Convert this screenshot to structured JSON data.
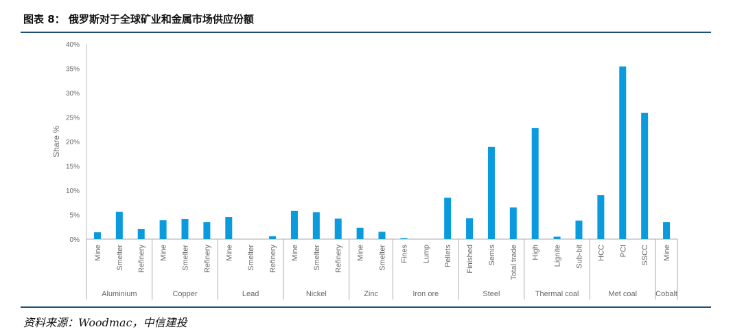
{
  "header": {
    "title": "图表 8：   俄罗斯对于全球矿业和金属市场供应份额"
  },
  "footer": {
    "source": "资料来源：Woodmac，中信建投"
  },
  "chart_data": {
    "type": "bar",
    "ylabel": "Share %",
    "ylim": [
      0,
      40
    ],
    "yticks": [
      "0%",
      "5%",
      "10%",
      "15%",
      "20%",
      "25%",
      "30%",
      "35%",
      "40%"
    ],
    "grid": false,
    "bar_color": "#0a9ade",
    "groups": [
      {
        "name": "Aluminium",
        "categories": [
          "Mine",
          "Smelter",
          "Refinery"
        ],
        "values": [
          1.4,
          5.6,
          2.1
        ]
      },
      {
        "name": "Copper",
        "categories": [
          "Mine",
          "Smelter",
          "Refinery"
        ],
        "values": [
          3.9,
          4.1,
          3.5
        ]
      },
      {
        "name": "Lead",
        "categories": [
          "Mine",
          "Smelter",
          "Refinery"
        ],
        "values": [
          4.5,
          0,
          0.6
        ]
      },
      {
        "name": "Nickel",
        "categories": [
          "Mine",
          "Smelter",
          "Refinery"
        ],
        "values": [
          5.8,
          5.5,
          4.2
        ]
      },
      {
        "name": "Zinc",
        "categories": [
          "Mine",
          "Smelter"
        ],
        "values": [
          2.3,
          1.5
        ]
      },
      {
        "name": "Iron ore",
        "categories": [
          "Fines",
          "Lump",
          "Pellets"
        ],
        "values": [
          0.2,
          0,
          8.5
        ]
      },
      {
        "name": "Steel",
        "categories": [
          "Finished",
          "Semis",
          "Total trade"
        ],
        "values": [
          4.3,
          18.9,
          6.5
        ]
      },
      {
        "name": "Thermal coal",
        "categories": [
          "High",
          "Lignite",
          "Sub-bit"
        ],
        "values": [
          22.8,
          0.5,
          3.8
        ]
      },
      {
        "name": "Met coal",
        "categories": [
          "HCC",
          "PCI",
          "SSCC"
        ],
        "values": [
          9.0,
          35.4,
          25.9
        ]
      },
      {
        "name": "Cobalt",
        "categories": [
          "Mine"
        ],
        "values": [
          3.5
        ]
      }
    ]
  }
}
